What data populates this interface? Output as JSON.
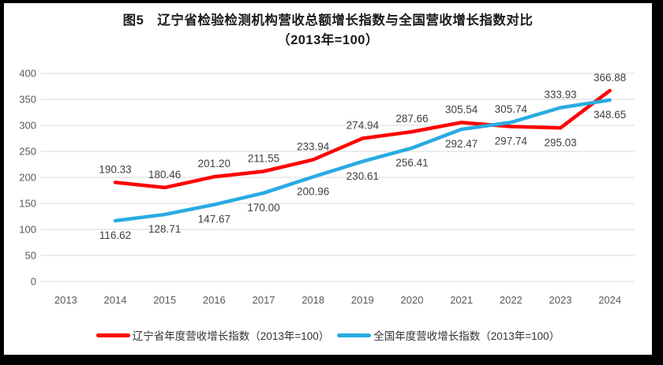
{
  "chart_data": {
    "type": "line",
    "title": "图5　辽宁省检验检测机构营收总额增长指数与全国营收增长指数对比",
    "subtitle": "（2013年=100）",
    "categories": [
      "2013",
      "2014",
      "2015",
      "2016",
      "2017",
      "2018",
      "2019",
      "2020",
      "2021",
      "2022",
      "2023",
      "2024"
    ],
    "ylim": [
      0,
      400
    ],
    "ytick_step": 50,
    "yticks": [
      0,
      50,
      100,
      150,
      200,
      250,
      300,
      350,
      400
    ],
    "grid": true,
    "legend_position": "bottom",
    "colors": {
      "gridline": "#D9D9D9",
      "axis_text": "#595959",
      "data_label_text": "#404040"
    },
    "series": [
      {
        "name": "辽宁省年度营收增长指数（2013年=100）",
        "color": "#FF0000",
        "start_index": 1,
        "x": [
          "2014",
          "2015",
          "2016",
          "2017",
          "2018",
          "2019",
          "2020",
          "2021",
          "2022",
          "2023",
          "2024"
        ],
        "values": [
          190.33,
          180.46,
          201.2,
          211.55,
          233.94,
          274.94,
          287.66,
          305.54,
          297.74,
          295.03,
          366.88
        ],
        "point_labels": [
          "190.33",
          "180.46",
          "201.20",
          "211.55",
          "233.94",
          "274.94",
          "287.66",
          "305.54",
          "297.74",
          "295.03",
          "366.88"
        ],
        "label_positions": [
          "above",
          "above",
          "above",
          "above",
          "above",
          "above",
          "above",
          "above",
          "below",
          "below",
          "above"
        ]
      },
      {
        "name": "全国年度营收增长指数（2013年=100）",
        "color": "#29ABE2",
        "start_index": 1,
        "x": [
          "2014",
          "2015",
          "2016",
          "2017",
          "2018",
          "2019",
          "2020",
          "2021",
          "2022",
          "2023",
          "2024"
        ],
        "values": [
          116.62,
          128.71,
          147.67,
          170.0,
          200.96,
          230.61,
          256.41,
          292.47,
          305.74,
          333.93,
          348.65
        ],
        "point_labels": [
          "116.62",
          "128.71",
          "147.67",
          "170.00",
          "200.96",
          "230.61",
          "256.41",
          "292.47",
          "305.74",
          "333.93",
          "348.65"
        ],
        "label_positions": [
          "below",
          "below",
          "below",
          "below",
          "below",
          "below",
          "below",
          "below",
          "above",
          "above",
          "below"
        ]
      }
    ]
  }
}
